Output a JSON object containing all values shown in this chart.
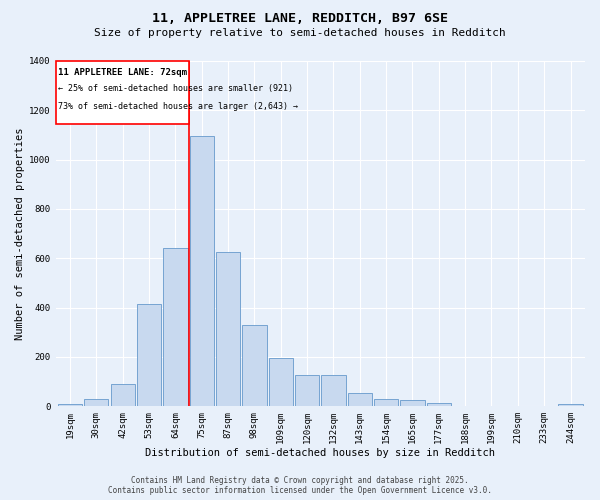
{
  "title1": "11, APPLETREE LANE, REDDITCH, B97 6SE",
  "title2": "Size of property relative to semi-detached houses in Redditch",
  "xlabel": "Distribution of semi-detached houses by size in Redditch",
  "ylabel": "Number of semi-detached properties",
  "categories": [
    "19sqm",
    "30sqm",
    "42sqm",
    "53sqm",
    "64sqm",
    "75sqm",
    "87sqm",
    "98sqm",
    "109sqm",
    "120sqm",
    "132sqm",
    "143sqm",
    "154sqm",
    "165sqm",
    "177sqm",
    "188sqm",
    "199sqm",
    "210sqm",
    "233sqm",
    "244sqm"
  ],
  "values": [
    10,
    28,
    92,
    415,
    640,
    1095,
    625,
    330,
    195,
    125,
    125,
    55,
    30,
    25,
    15,
    0,
    0,
    0,
    0,
    10
  ],
  "bar_color": "#c8d9ef",
  "bar_edge_color": "#6699cc",
  "vline_x": 4.5,
  "annotation_title": "11 APPLETREE LANE: 72sqm",
  "annotation_line1": "← 25% of semi-detached houses are smaller (921)",
  "annotation_line2": "73% of semi-detached houses are larger (2,643) →",
  "ylim": [
    0,
    1400
  ],
  "yticks": [
    0,
    200,
    400,
    600,
    800,
    1000,
    1200,
    1400
  ],
  "footer1": "Contains HM Land Registry data © Crown copyright and database right 2025.",
  "footer2": "Contains public sector information licensed under the Open Government Licence v3.0.",
  "bg_color": "#e8f0fa",
  "plot_bg_color": "#e8f0fa",
  "grid_color": "#ffffff",
  "title1_fontsize": 9.5,
  "title2_fontsize": 8.0,
  "ylabel_fontsize": 7.5,
  "xlabel_fontsize": 7.5,
  "tick_fontsize": 6.5,
  "annot_title_fontsize": 6.5,
  "annot_text_fontsize": 6.0,
  "footer_fontsize": 5.5
}
